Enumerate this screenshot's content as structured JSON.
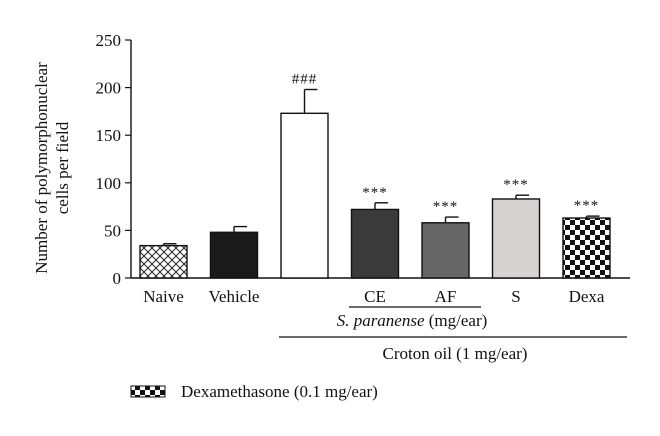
{
  "chart_data": {
    "type": "bar",
    "ylabel_lines": [
      "Number of polymorphonuclear",
      "cells per field"
    ],
    "ylim": [
      0,
      250
    ],
    "yticks": [
      0,
      50,
      100,
      150,
      200,
      250
    ],
    "grid": false,
    "categories": [
      "Naive",
      "Vehicle",
      "",
      "CE",
      "AF",
      "S",
      "Dexa"
    ],
    "values": [
      34,
      48,
      173,
      72,
      58,
      83,
      63
    ],
    "errors": [
      2,
      6,
      25,
      7,
      6,
      4,
      2
    ],
    "fills": [
      "crosshatch",
      "#1a1a1a",
      "#ffffff",
      "#3a3a3a",
      "#666666",
      "#d6d2d2",
      "checker"
    ],
    "significance": [
      "",
      "",
      "###",
      "***",
      "***",
      "***",
      "***"
    ],
    "group_labels": {
      "paranense_italic": "S. paranense",
      "paranense_unit": "(mg/ear)",
      "croton": "Croton oil (1 mg/ear)"
    },
    "legend": {
      "label": "Dexamethasone (0.1 mg/ear)",
      "swatch": "checker",
      "position": "bottom-left"
    }
  }
}
